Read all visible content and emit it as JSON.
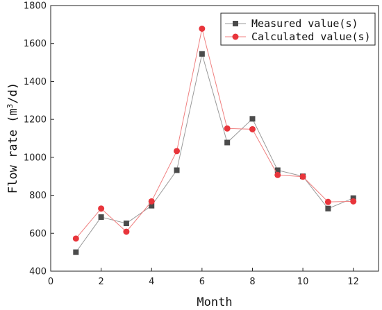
{
  "chart_data": {
    "type": "line",
    "title": "",
    "xlabel": "Month",
    "ylabel_main": "Flow rate (m",
    "ylabel_sup": "3",
    "ylabel_end": "/d)",
    "xlim": [
      0,
      13
    ],
    "ylim": [
      400,
      1800
    ],
    "xticks": [
      0,
      2,
      4,
      6,
      8,
      10,
      12
    ],
    "yticks": [
      400,
      600,
      800,
      1000,
      1200,
      1400,
      1600,
      1800
    ],
    "grid": false,
    "legend_position": "top-right",
    "x": [
      1,
      2,
      3,
      4,
      5,
      6,
      7,
      8,
      9,
      10,
      11,
      12
    ],
    "series": [
      {
        "name": "Measured value(s)",
        "marker": "square",
        "line_color": "#9a9a9a",
        "marker_color": "#4b4b4b",
        "values": [
          500,
          685,
          652,
          745,
          932,
          1545,
          1078,
          1203,
          932,
          900,
          730,
          785
        ]
      },
      {
        "name": "Calculated value(s)",
        "marker": "circle",
        "line_color": "#f08080",
        "marker_color": "#e8353b",
        "values": [
          572,
          730,
          608,
          768,
          1033,
          1678,
          1152,
          1148,
          907,
          898,
          765,
          768
        ]
      }
    ]
  }
}
